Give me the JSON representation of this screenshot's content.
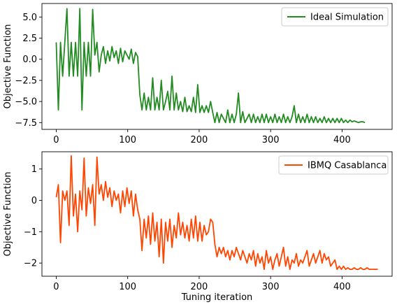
{
  "chart_data": [
    {
      "type": "line",
      "title": "",
      "xlabel": "",
      "ylabel": "Objective Function",
      "xlim": [
        -20,
        470
      ],
      "ylim": [
        -8.3,
        6.6
      ],
      "xticks": [
        0,
        100,
        200,
        300,
        400
      ],
      "yticks": [
        -7.5,
        -5.0,
        -2.5,
        0.0,
        2.5,
        5.0
      ],
      "ytick_labels": [
        "−7.5",
        "−5.0",
        "−2.5",
        "0.0",
        "2.5",
        "5.0"
      ],
      "legend_position": "top-right",
      "grid": false,
      "series": [
        {
          "name": "Ideal Simulation",
          "color": "#228b22",
          "x_step": 3,
          "x_start": 0,
          "values": [
            2.0,
            -6.0,
            2.0,
            -2.0,
            2.0,
            6.0,
            -2.0,
            2.0,
            -2.0,
            2.0,
            -2.0,
            6.0,
            -6.0,
            2.0,
            -2.0,
            2.0,
            -2.0,
            5.9,
            0.5,
            2.0,
            -1.5,
            0.5,
            1.5,
            -0.5,
            1.0,
            -0.2,
            1.5,
            0.2,
            1.0,
            -0.5,
            1.3,
            -0.3,
            1.0,
            0.5,
            0.0,
            1.2,
            -0.5,
            0.8,
            0.3,
            -4.2,
            -6.0,
            -4.0,
            -6.0,
            -4.5,
            -6.0,
            -2.2,
            -6.0,
            -4.5,
            -6.0,
            -2.5,
            -6.0,
            -5.0,
            -3.8,
            -6.0,
            -2.0,
            -6.0,
            -4.0,
            -6.0,
            -5.0,
            -6.2,
            -4.5,
            -6.2,
            -5.5,
            -6.2,
            -4.5,
            -6.3,
            -3.0,
            -6.3,
            -5.5,
            -6.3,
            -5.5,
            -6.3,
            -5.0,
            -6.3,
            -7.5,
            -6.3,
            -7.5,
            -6.5,
            -7.0,
            -7.5,
            -6.0,
            -7.5,
            -6.5,
            -7.5,
            -6.5,
            -4.0,
            -7.5,
            -6.2,
            -7.5,
            -7.0,
            -6.5,
            -7.5,
            -6.5,
            -7.5,
            -6.8,
            -7.5,
            -6.5,
            -7.5,
            -6.5,
            -7.5,
            -6.8,
            -7.5,
            -6.5,
            -7.5,
            -6.8,
            -7.5,
            -6.5,
            -7.5,
            -6.8,
            -7.5,
            -6.8,
            -5.5,
            -7.5,
            -6.5,
            -7.5,
            -6.8,
            -7.5,
            -6.5,
            -7.5,
            -6.8,
            -7.5,
            -6.8,
            -7.5,
            -7.0,
            -7.5,
            -6.8,
            -7.5,
            -7.0,
            -7.5,
            -7.0,
            -7.5,
            -7.0,
            -7.5,
            -7.0,
            -7.5,
            -7.2,
            -7.5,
            -7.2,
            -7.4,
            -7.3,
            -7.4,
            -7.5,
            -7.4,
            -7.4,
            -7.5
          ]
        }
      ]
    },
    {
      "type": "line",
      "title": "",
      "xlabel": "Tuning iteration",
      "ylabel": "Objective Function",
      "xlim": [
        -20,
        470
      ],
      "ylim": [
        -2.42,
        1.55
      ],
      "xticks": [
        0,
        100,
        200,
        300,
        400
      ],
      "yticks": [
        -2,
        -1,
        0,
        1
      ],
      "ytick_labels": [
        "−2",
        "−1",
        "0",
        "1"
      ],
      "legend_position": "top-right",
      "grid": false,
      "series": [
        {
          "name": "IBMQ Casablanca",
          "color": "#ff4500",
          "x_step": 3,
          "x_start": 0,
          "values": [
            0.1,
            0.5,
            -1.35,
            0.3,
            0.0,
            0.3,
            -0.8,
            1.42,
            -0.5,
            0.2,
            -1.0,
            0.3,
            -0.3,
            1.35,
            -0.5,
            0.4,
            -0.1,
            0.5,
            -0.8,
            1.38,
            0.2,
            0.5,
            0.0,
            0.6,
            0.1,
            0.4,
            -0.2,
            0.3,
            0.0,
            0.2,
            -0.4,
            0.3,
            -0.2,
            0.4,
            -0.1,
            0.3,
            -0.5,
            0.2,
            -0.3,
            -0.6,
            -1.6,
            -0.6,
            -1.2,
            -0.5,
            -1.4,
            -0.4,
            -1.3,
            -0.7,
            -1.8,
            -0.6,
            -2.0,
            -0.7,
            -1.3,
            -0.6,
            -1.5,
            -0.8,
            -1.2,
            -0.4,
            -1.1,
            -0.7,
            -1.2,
            -0.8,
            -1.3,
            -0.6,
            -1.2,
            -0.5,
            -1.3,
            -0.7,
            -1.3,
            -0.8,
            -1.1,
            -1.0,
            -0.6,
            -0.7,
            -1.4,
            -1.8,
            -1.5,
            -1.7,
            -1.5,
            -1.8,
            -1.6,
            -1.9,
            -1.6,
            -1.8,
            -1.5,
            -1.7,
            -1.9,
            -1.6,
            -1.8,
            -2.0,
            -1.7,
            -1.9,
            -1.6,
            -2.1,
            -1.7,
            -2.0,
            -1.8,
            -2.2,
            -1.6,
            -2.0,
            -1.8,
            -2.2,
            -1.9,
            -1.7,
            -2.1,
            -1.8,
            -1.5,
            -2.1,
            -1.8,
            -2.2,
            -1.9,
            -2.0,
            -1.7,
            -2.1,
            -1.9,
            -2.0,
            -1.8,
            -1.6,
            -2.1,
            -1.9,
            -1.7,
            -2.0,
            -1.8,
            -1.6,
            -2.0,
            -1.7,
            -1.9,
            -1.8,
            -2.1,
            -2.0,
            -1.9,
            -2.2,
            -2.1,
            -2.2,
            -2.1,
            -2.2,
            -2.15,
            -2.2,
            -2.2,
            -2.15,
            -2.2,
            -2.2,
            -2.15,
            -2.2,
            -2.2,
            -2.15,
            -2.2,
            -2.2,
            -2.2,
            -2.2,
            -2.2
          ]
        }
      ]
    }
  ]
}
